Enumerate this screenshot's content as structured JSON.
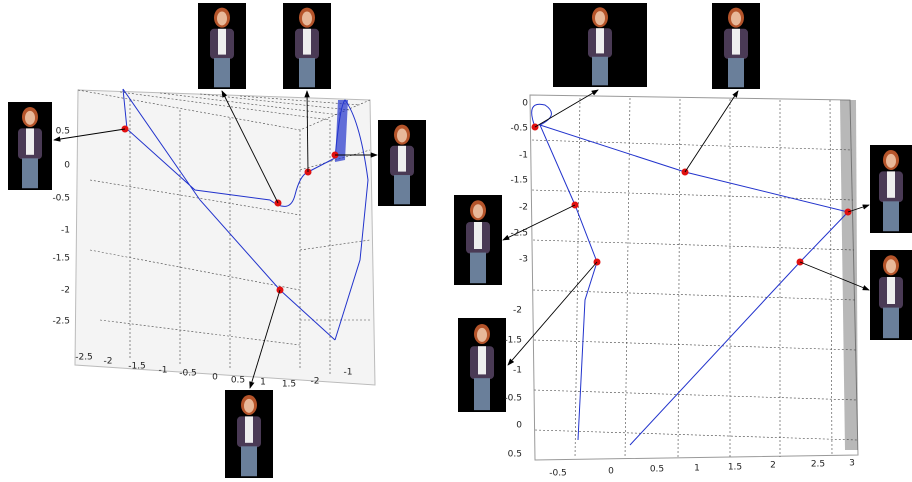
{
  "left_plot": {
    "y_ticks": [
      "0.5",
      "0",
      "-0.5",
      "-1",
      "-1.5",
      "-2",
      "-2.5"
    ],
    "x_ticks": [
      "-2.5",
      "-2",
      "-1.5",
      "-1",
      "-0.5",
      "0",
      "0.5",
      "1",
      "1.5"
    ],
    "z_ticks": [
      "-2",
      "-1"
    ]
  },
  "right_plot": {
    "y_ticks": [
      "0",
      "-0.5",
      "-1",
      "-1.5",
      "-2",
      "-2.5",
      "-3"
    ],
    "z_ticks": [
      "-2",
      "-1.5",
      "-1",
      "-0.5",
      "0",
      "0.5"
    ],
    "x_ticks": [
      "-0.5",
      "0",
      "0.5",
      "1",
      "1.5",
      "2",
      "2.5",
      "3"
    ]
  }
}
